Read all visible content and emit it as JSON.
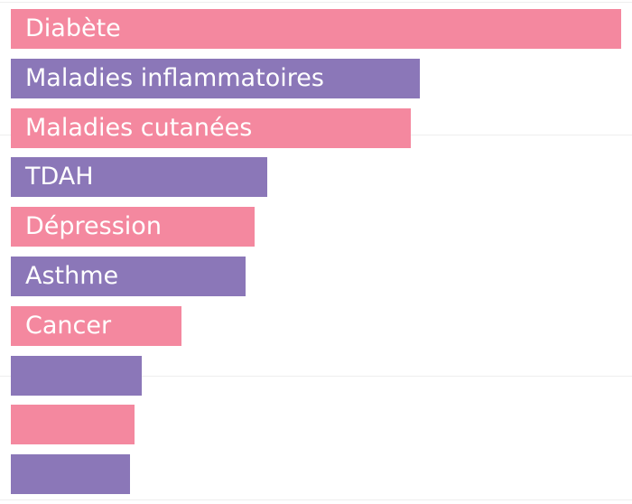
{
  "chart_data": {
    "type": "bar",
    "orientation": "horizontal",
    "categories": [
      "Diabète",
      "Maladies inflammatoires",
      "Maladies cutanées",
      "TDAH",
      "Dépression",
      "Asthme",
      "Cancer",
      "",
      "",
      ""
    ],
    "values": [
      100,
      67,
      65.5,
      42,
      40,
      38.5,
      28,
      21.5,
      20.3,
      19.5
    ],
    "colors": [
      "#f4889f",
      "#8b77b8",
      "#f4889f",
      "#8b77b8",
      "#f4889f",
      "#8b77b8",
      "#f4889f",
      "#8b77b8",
      "#f4889f",
      "#8b77b8"
    ],
    "xlim": [
      0,
      100
    ],
    "grid": true,
    "legend": "none"
  }
}
